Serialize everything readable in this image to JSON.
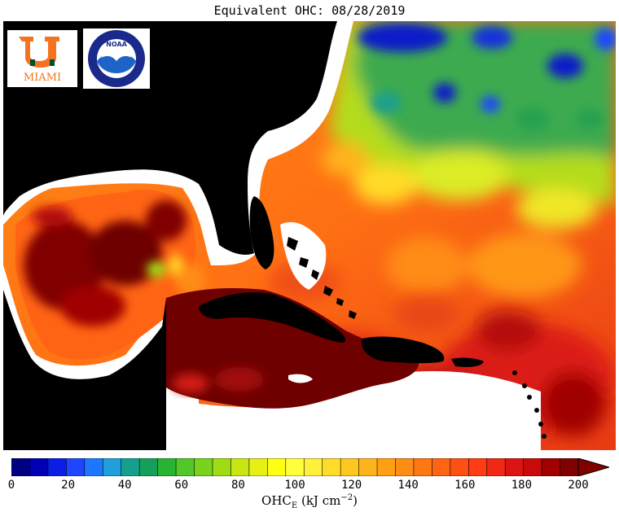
{
  "title": "Equivalent OHC: 08/28/2019",
  "logos": {
    "um_text": "MIAMI",
    "noaa_text": "NOAA"
  },
  "colorbar": {
    "ticks": [
      "0",
      "20",
      "40",
      "60",
      "80",
      "100",
      "120",
      "140",
      "160",
      "180",
      "200"
    ],
    "units_main": "OHC",
    "units_sub": "E",
    "units_rest": " (kJ cm",
    "units_sup": "−2",
    "units_end": ")",
    "colors": [
      "#000080",
      "#0000b4",
      "#0a1ee6",
      "#1e46ff",
      "#1e78ff",
      "#1ea0dc",
      "#14a08c",
      "#14a05a",
      "#28b432",
      "#50c828",
      "#78d21e",
      "#a0dc14",
      "#c8e614",
      "#e6f014",
      "#ffff14",
      "#ffff3c",
      "#fff03c",
      "#ffdc28",
      "#ffc81e",
      "#ffb41e",
      "#ffa014",
      "#ff8c14",
      "#ff7814",
      "#ff6414",
      "#ff5014",
      "#ff3c14",
      "#f02814",
      "#dc1414",
      "#c80a0a",
      "#a00000",
      "#800000"
    ]
  },
  "colors": {
    "land": "#000000",
    "shelf": "#ffffff",
    "deep_ohc": "#6e0000"
  }
}
